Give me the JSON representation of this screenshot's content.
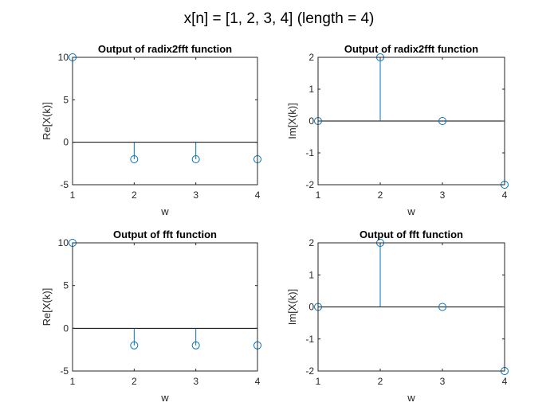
{
  "figure_title": "x[n] = [1, 2, 3, 4] (length = 4)",
  "colors": {
    "stem": "#0072BD",
    "axes": "#262626",
    "background": "#ffffff"
  },
  "chart_data": [
    {
      "type": "stem",
      "title": "Output of radix2fft function",
      "xlabel": "w",
      "ylabel": "Re[X(k)]",
      "x": [
        1,
        2,
        3,
        4
      ],
      "y": [
        10,
        -2,
        -2,
        -2
      ],
      "xlim": [
        1,
        4
      ],
      "ylim": [
        -5,
        10
      ],
      "xticks": [
        "1",
        "2",
        "3",
        "4"
      ],
      "yticks": [
        "-5",
        "0",
        "5",
        "10"
      ],
      "ytick_values": [
        -5,
        0,
        5,
        10
      ],
      "baseline": 0
    },
    {
      "type": "stem",
      "title": "Output of radix2fft function",
      "xlabel": "w",
      "ylabel": "Im[X(k)]",
      "x": [
        1,
        2,
        3,
        4
      ],
      "y": [
        0,
        2,
        0,
        -2
      ],
      "xlim": [
        1,
        4
      ],
      "ylim": [
        -2,
        2
      ],
      "xticks": [
        "1",
        "2",
        "3",
        "4"
      ],
      "yticks": [
        "-2",
        "-1",
        "0",
        "1",
        "2"
      ],
      "ytick_values": [
        -2,
        -1,
        0,
        1,
        2
      ],
      "baseline": 0
    },
    {
      "type": "stem",
      "title": "Output of fft function",
      "xlabel": "w",
      "ylabel": "Re[X(k)]",
      "x": [
        1,
        2,
        3,
        4
      ],
      "y": [
        10,
        -2,
        -2,
        -2
      ],
      "xlim": [
        1,
        4
      ],
      "ylim": [
        -5,
        10
      ],
      "xticks": [
        "1",
        "2",
        "3",
        "4"
      ],
      "yticks": [
        "-5",
        "0",
        "5",
        "10"
      ],
      "ytick_values": [
        -5,
        0,
        5,
        10
      ],
      "baseline": 0
    },
    {
      "type": "stem",
      "title": "Output of fft function",
      "xlabel": "w",
      "ylabel": "Im[X(k)]",
      "x": [
        1,
        2,
        3,
        4
      ],
      "y": [
        0,
        2,
        0,
        -2
      ],
      "xlim": [
        1,
        4
      ],
      "ylim": [
        -2,
        2
      ],
      "xticks": [
        "1",
        "2",
        "3",
        "4"
      ],
      "yticks": [
        "-2",
        "-1",
        "0",
        "1",
        "2"
      ],
      "ytick_values": [
        -2,
        -1,
        0,
        1,
        2
      ],
      "baseline": 0
    }
  ]
}
